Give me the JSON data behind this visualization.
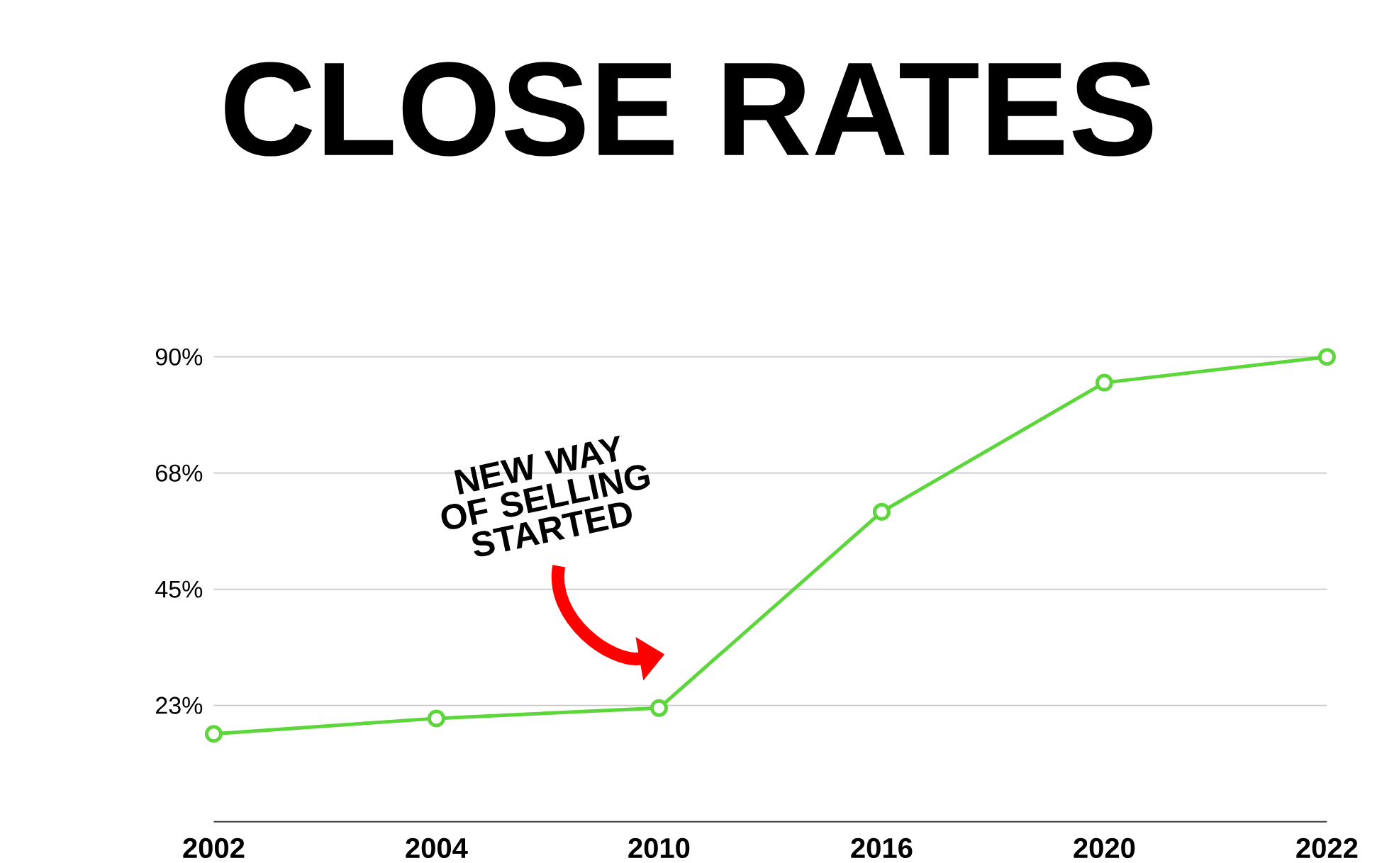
{
  "chart_data": {
    "type": "line",
    "title": "CLOSE RATES",
    "categories": [
      "2002",
      "2004",
      "2010",
      "2016",
      "2020",
      "2022"
    ],
    "values": [
      17,
      20,
      22,
      60,
      85,
      90
    ],
    "color": "#5cd63a",
    "ylim": [
      0,
      90
    ],
    "yticks": [
      {
        "value": 22.5,
        "label": "23%"
      },
      {
        "value": 45,
        "label": "45%"
      },
      {
        "value": 67.5,
        "label": "68%"
      },
      {
        "value": 90,
        "label": "90%"
      }
    ],
    "grid": "y",
    "marker": "circle",
    "line_style": "solid",
    "annotations": [
      "NEW WAY OF SELLING STARTED"
    ]
  }
}
